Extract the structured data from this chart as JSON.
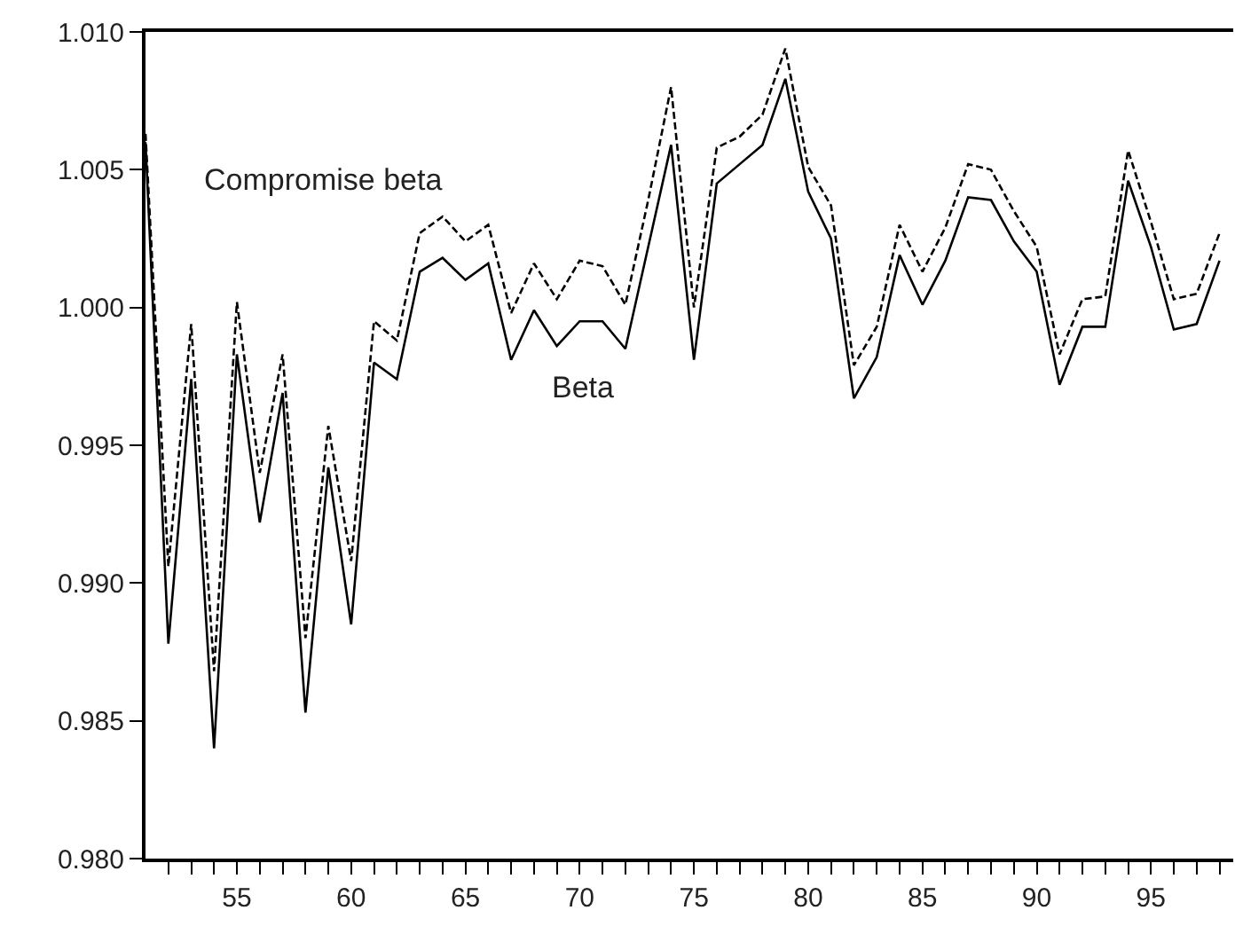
{
  "chart_data": {
    "type": "line",
    "x": [
      51,
      52,
      53,
      54,
      55,
      56,
      57,
      58,
      59,
      60,
      61,
      62,
      63,
      64,
      65,
      66,
      67,
      68,
      69,
      70,
      71,
      72,
      73,
      74,
      75,
      76,
      77,
      78,
      79,
      80,
      81,
      82,
      83,
      84,
      85,
      86,
      87,
      88,
      89,
      90,
      91,
      92,
      93,
      94,
      95,
      96,
      97,
      98
    ],
    "series": [
      {
        "name": "Compromise beta",
        "color": "#000000",
        "line_style": "dashed",
        "values": [
          1.0063,
          0.9906,
          0.9994,
          0.9868,
          1.0002,
          0.994,
          0.9983,
          0.988,
          0.9957,
          0.9908,
          0.9995,
          0.9988,
          1.0027,
          1.0033,
          1.0024,
          1.003,
          0.9998,
          1.0016,
          1.0003,
          1.0017,
          1.0015,
          1.0001,
          1.0039,
          1.008,
          1.0,
          1.0058,
          1.0062,
          1.007,
          1.0094,
          1.0051,
          1.0037,
          0.9979,
          0.9993,
          1.003,
          1.0013,
          1.0029,
          1.0052,
          1.005,
          1.0035,
          1.0022,
          0.9983,
          1.0003,
          1.0004,
          1.0057,
          1.0031,
          1.0003,
          1.0005,
          1.0027
        ]
      },
      {
        "name": "Beta",
        "color": "#000000",
        "line_style": "solid",
        "values": [
          1.006,
          0.9878,
          0.9974,
          0.984,
          0.9983,
          0.9922,
          0.9969,
          0.9853,
          0.9942,
          0.9885,
          0.998,
          0.9974,
          1.0013,
          1.0018,
          1.001,
          1.0016,
          0.9981,
          0.9999,
          0.9986,
          0.9995,
          0.9995,
          0.9985,
          1.0022,
          1.0059,
          0.9981,
          1.0045,
          1.0052,
          1.0059,
          1.0083,
          1.0042,
          1.0025,
          0.9967,
          0.9982,
          1.0019,
          1.0001,
          1.0017,
          1.004,
          1.0039,
          1.0024,
          1.0013,
          0.9972,
          0.9993,
          0.9993,
          1.0046,
          1.0022,
          0.9992,
          0.9994,
          1.0017
        ]
      }
    ],
    "xlim": [
      51,
      98.6
    ],
    "xticks": [
      {
        "value": 52,
        "label": null
      },
      {
        "value": 53,
        "label": null
      },
      {
        "value": 54,
        "label": null
      },
      55,
      {
        "value": 56,
        "label": null
      },
      {
        "value": 57,
        "label": null
      },
      {
        "value": 58,
        "label": null
      },
      {
        "value": 59,
        "label": null
      },
      60,
      {
        "value": 61,
        "label": null
      },
      {
        "value": 62,
        "label": null
      },
      {
        "value": 63,
        "label": null
      },
      {
        "value": 64,
        "label": null
      },
      65,
      {
        "value": 66,
        "label": null
      },
      {
        "value": 67,
        "label": null
      },
      {
        "value": 68,
        "label": null
      },
      {
        "value": 69,
        "label": null
      },
      70,
      {
        "value": 71,
        "label": null
      },
      {
        "value": 72,
        "label": null
      },
      {
        "value": 73,
        "label": null
      },
      {
        "value": 74,
        "label": null
      },
      75,
      {
        "value": 76,
        "label": null
      },
      {
        "value": 77,
        "label": null
      },
      {
        "value": 78,
        "label": null
      },
      {
        "value": 79,
        "label": null
      },
      80,
      {
        "value": 81,
        "label": null
      },
      {
        "value": 82,
        "label": null
      },
      {
        "value": 83,
        "label": null
      },
      {
        "value": 84,
        "label": null
      },
      85,
      {
        "value": 86,
        "label": null
      },
      {
        "value": 87,
        "label": null
      },
      {
        "value": 88,
        "label": null
      },
      {
        "value": 89,
        "label": null
      },
      90,
      {
        "value": 91,
        "label": null
      },
      {
        "value": 92,
        "label": null
      },
      {
        "value": 93,
        "label": null
      },
      {
        "value": 94,
        "label": null
      },
      95,
      {
        "value": 96,
        "label": null
      },
      {
        "value": 97,
        "label": null
      },
      {
        "value": 98,
        "label": null
      }
    ],
    "ylim": [
      0.98,
      1.01
    ],
    "yticks": [
      {
        "value": 0.98,
        "label": "0.980"
      },
      {
        "value": 0.985,
        "label": "0.985"
      },
      {
        "value": 0.99,
        "label": "0.990"
      },
      {
        "value": 0.995,
        "label": "0.995"
      },
      {
        "value": 1.0,
        "label": "1.000"
      },
      {
        "value": 1.005,
        "label": "1.005"
      },
      {
        "value": 1.01,
        "label": "1.010"
      }
    ],
    "legend": false,
    "marker": "none"
  }
}
